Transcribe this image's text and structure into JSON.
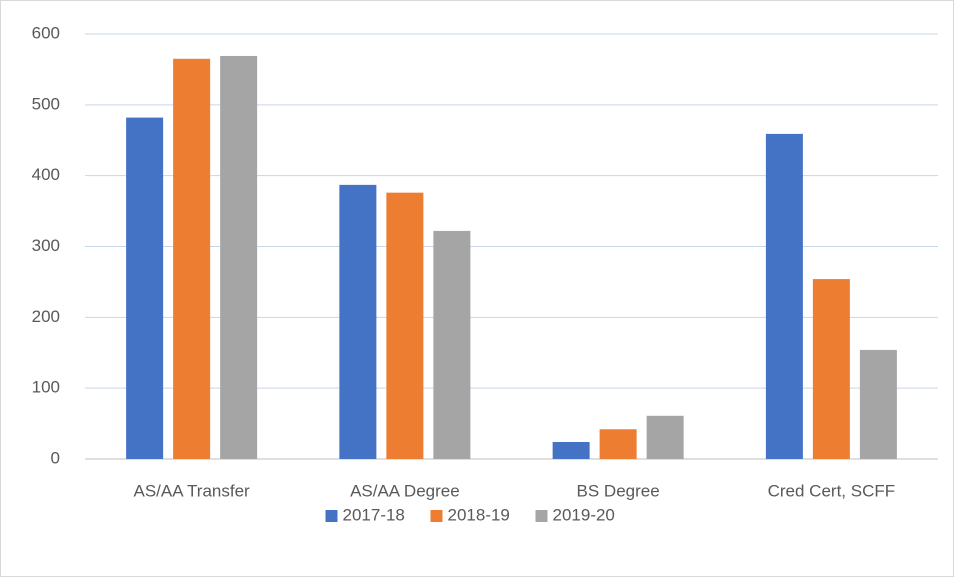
{
  "chart_data": {
    "type": "bar",
    "categories": [
      "AS/AA Transfer",
      "AS/AA Degree",
      "BS Degree",
      "Cred Cert, SCFF"
    ],
    "series": [
      {
        "name": "2017-18",
        "color": "#4472c4",
        "values": [
          482,
          387,
          24,
          459
        ]
      },
      {
        "name": "2018-19",
        "color": "#ed7d31",
        "values": [
          565,
          376,
          42,
          254
        ]
      },
      {
        "name": "2019-20",
        "color": "#a5a5a5",
        "values": [
          569,
          322,
          61,
          154
        ]
      }
    ],
    "ylim": [
      0,
      600
    ],
    "yticks": [
      0,
      100,
      200,
      300,
      400,
      500,
      600
    ],
    "grid": true,
    "legend": "bottom"
  }
}
